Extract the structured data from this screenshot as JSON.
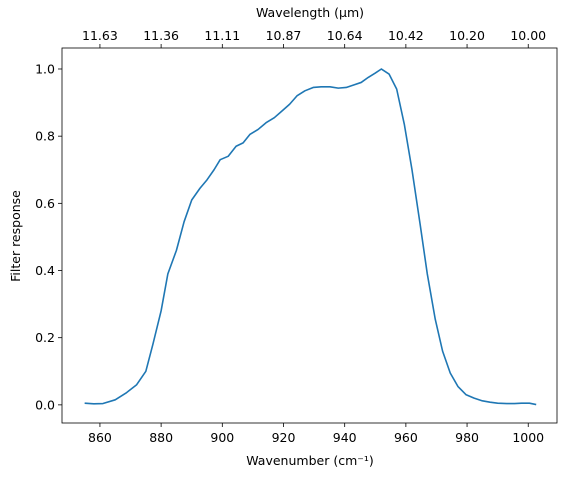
{
  "chart_data": {
    "type": "line",
    "xlabel": "Wavenumber (cm⁻¹)",
    "ylabel": "Filter response",
    "x2label": "Wavelength (μm)",
    "x": [
      855,
      858,
      861,
      865,
      868.5,
      872,
      875,
      877.3,
      880,
      882.2,
      885,
      887.5,
      890,
      892.7,
      895,
      897.3,
      899.3,
      901.9,
      904.5,
      906.8,
      909,
      911.7,
      914.3,
      917,
      919.5,
      922,
      924.4,
      927,
      929.7,
      932.3,
      935.2,
      937.9,
      940.5,
      942.8,
      945.4,
      947.7,
      950,
      952,
      954.5,
      957,
      959.5,
      962,
      964.7,
      967,
      969.6,
      972,
      974.5,
      977,
      979.7,
      982.3,
      985,
      987.5,
      990,
      993,
      995.5,
      997.8,
      1000.4,
      1002.6
    ],
    "series": [
      {
        "name": "Filter response",
        "color": "#1f77b4",
        "values": [
          0.005,
          0.003,
          0.004,
          0.015,
          0.035,
          0.06,
          0.1,
          0.18,
          0.28,
          0.39,
          0.46,
          0.545,
          0.61,
          0.645,
          0.67,
          0.7,
          0.73,
          0.74,
          0.77,
          0.78,
          0.805,
          0.82,
          0.84,
          0.855,
          0.875,
          0.895,
          0.92,
          0.935,
          0.945,
          0.947,
          0.947,
          0.943,
          0.945,
          0.952,
          0.96,
          0.975,
          0.988,
          1.0,
          0.985,
          0.94,
          0.835,
          0.7,
          0.535,
          0.39,
          0.255,
          0.16,
          0.095,
          0.055,
          0.03,
          0.02,
          0.012,
          0.008,
          0.005,
          0.004,
          0.004,
          0.005,
          0.005,
          0.001
        ]
      }
    ],
    "xlim": [
      847.6,
      1009.4
    ],
    "ylim": [
      -0.054,
      1.0625
    ],
    "xticks": [
      860,
      880,
      900,
      920,
      940,
      960,
      980,
      1000
    ],
    "x2ticks": [
      {
        "value": 860,
        "label": "11.63"
      },
      {
        "value": 880,
        "label": "11.36"
      },
      {
        "value": 900,
        "label": "11.11"
      },
      {
        "value": 920,
        "label": "10.87"
      },
      {
        "value": 940,
        "label": "10.64"
      },
      {
        "value": 960,
        "label": "10.42"
      },
      {
        "value": 980,
        "label": "10.20"
      },
      {
        "value": 1000,
        "label": "10.00"
      }
    ],
    "yticks": [
      {
        "value": 0,
        "label": "0.0"
      },
      0.2,
      0.4,
      0.6,
      0.8,
      {
        "value": 1,
        "label": "1.0"
      }
    ],
    "grid": false
  }
}
